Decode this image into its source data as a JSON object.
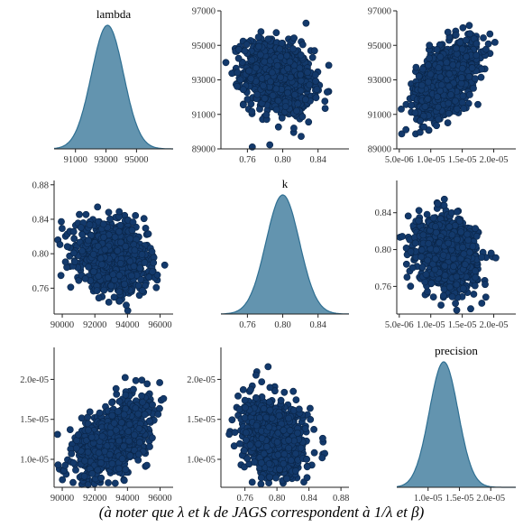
{
  "caption": "(à noter que λ et k de JAGS correspondent à 1/λ et β)",
  "colors": {
    "points_fill": "#13396b",
    "points_stroke": "#0a2547",
    "density_fill": "#5b8eab",
    "density_line": "#2f6f92",
    "axis": "#222222",
    "tick_text": "#333333"
  },
  "chart_data": [
    {
      "type": "area",
      "panel": "1,1",
      "title": "lambda",
      "variable": "lambda",
      "distribution": {
        "shape": "normal",
        "mean": 93100,
        "sd": 1050
      },
      "xlim": [
        89600,
        97400
      ],
      "xticks": [
        91000,
        93000,
        95000
      ],
      "xtick_labels": [
        "91000",
        "93000",
        "95000"
      ],
      "yticks": [],
      "grid": false
    },
    {
      "type": "scatter",
      "panel": "1,2",
      "title": "",
      "x_variable": "k",
      "y_variable": "lambda",
      "cloud": {
        "x_center": 0.795,
        "y_center": 93100,
        "x_spread": 0.019,
        "y_spread": 1050,
        "correlation": -0.2
      },
      "xlim": [
        0.73,
        0.875
      ],
      "ylim": [
        89000,
        97000
      ],
      "xticks": [
        0.76,
        0.8,
        0.84
      ],
      "xtick_labels": [
        "0.76",
        "0.80",
        "0.84"
      ],
      "yticks": [
        89000,
        91000,
        93000,
        95000,
        97000
      ],
      "ytick_labels": [
        "89000",
        "91000",
        "93000",
        "95000",
        "97000"
      ],
      "grid": false
    },
    {
      "type": "scatter",
      "panel": "1,3",
      "title": "",
      "x_variable": "precision",
      "y_variable": "lambda",
      "cloud": {
        "x_center": 1.25e-05,
        "y_center": 93100,
        "x_spread": 2.4e-06,
        "y_spread": 1050,
        "correlation": 0.5
      },
      "xlim": [
        4.6e-06,
        2.35e-05
      ],
      "ylim": [
        89000,
        97000
      ],
      "xticks": [
        5e-06,
        1e-05,
        1.5e-05,
        2e-05
      ],
      "xtick_labels": [
        "5.0e-06",
        "1.0e-05",
        "1.5e-05",
        "2.0e-05"
      ],
      "yticks": [
        89000,
        91000,
        93000,
        95000,
        97000
      ],
      "ytick_labels": [
        "89000",
        "91000",
        "93000",
        "95000",
        "97000"
      ],
      "grid": false
    },
    {
      "type": "scatter",
      "panel": "2,1",
      "title": "",
      "x_variable": "lambda",
      "y_variable": "k",
      "cloud": {
        "x_center": 93100,
        "y_center": 0.795,
        "x_spread": 1050,
        "y_spread": 0.019,
        "correlation": -0.2
      },
      "xlim": [
        89500,
        96800
      ],
      "ylim": [
        0.73,
        0.885
      ],
      "xticks": [
        90000,
        92000,
        94000,
        96000
      ],
      "xtick_labels": [
        "90000",
        "92000",
        "94000",
        "96000"
      ],
      "yticks": [
        0.76,
        0.8,
        0.84,
        0.88
      ],
      "ytick_labels": [
        "0.76",
        "0.80",
        "0.84",
        "0.88"
      ],
      "grid": false
    },
    {
      "type": "area",
      "panel": "2,2",
      "title": "k",
      "variable": "k",
      "distribution": {
        "shape": "normal",
        "mean": 0.8,
        "sd": 0.019
      },
      "xlim": [
        0.73,
        0.875
      ],
      "xticks": [
        0.76,
        0.8,
        0.84
      ],
      "xtick_labels": [
        "0.76",
        "0.80",
        "0.84"
      ],
      "yticks": [],
      "grid": false
    },
    {
      "type": "scatter",
      "panel": "2,3",
      "title": "",
      "x_variable": "precision",
      "y_variable": "k",
      "cloud": {
        "x_center": 1.25e-05,
        "y_center": 0.797,
        "x_spread": 2.4e-06,
        "y_spread": 0.019,
        "correlation": -0.2
      },
      "xlim": [
        4.6e-06,
        2.35e-05
      ],
      "ylim": [
        0.73,
        0.875
      ],
      "xticks": [
        5e-06,
        1e-05,
        1.5e-05,
        2e-05
      ],
      "xtick_labels": [
        "5.0e-06",
        "1.0e-05",
        "1.5e-05",
        "2.0e-05"
      ],
      "yticks": [
        0.76,
        0.8,
        0.84
      ],
      "ytick_labels": [
        "0.76",
        "0.80",
        "0.84"
      ],
      "grid": false
    },
    {
      "type": "scatter",
      "panel": "3,1",
      "title": "",
      "x_variable": "lambda",
      "y_variable": "precision",
      "cloud": {
        "x_center": 93100,
        "y_center": 1.25e-05,
        "x_spread": 1050,
        "y_spread": 2.4e-06,
        "correlation": 0.5
      },
      "xlim": [
        89500,
        96800
      ],
      "ylim": [
        6.5e-06,
        2.4e-05
      ],
      "xticks": [
        90000,
        92000,
        94000,
        96000
      ],
      "xtick_labels": [
        "90000",
        "92000",
        "94000",
        "96000"
      ],
      "yticks": [
        1e-05,
        1.5e-05,
        2e-05
      ],
      "ytick_labels": [
        "1.0e-05",
        "1.5e-05",
        "2.0e-05"
      ],
      "grid": false
    },
    {
      "type": "scatter",
      "panel": "3,2",
      "title": "",
      "x_variable": "k",
      "y_variable": "precision",
      "cloud": {
        "x_center": 0.797,
        "y_center": 1.25e-05,
        "x_spread": 0.019,
        "y_spread": 2.4e-06,
        "correlation": -0.2
      },
      "xlim": [
        0.73,
        0.89
      ],
      "ylim": [
        6.5e-06,
        2.4e-05
      ],
      "xticks": [
        0.76,
        0.8,
        0.84,
        0.88
      ],
      "xtick_labels": [
        "0.76",
        "0.80",
        "0.84",
        "0.88"
      ],
      "yticks": [
        1e-05,
        1.5e-05,
        2e-05
      ],
      "ytick_labels": [
        "1.0e-05",
        "1.5e-05",
        "2.0e-05"
      ],
      "grid": false
    },
    {
      "type": "area",
      "panel": "3,3",
      "title": "precision",
      "variable": "precision",
      "distribution": {
        "shape": "normal",
        "mean": 1.25e-05,
        "sd": 2.3e-06
      },
      "xlim": [
        5e-06,
        2.4e-05
      ],
      "xticks": [
        1e-05,
        1.5e-05,
        2e-05
      ],
      "xtick_labels": [
        "1.0e-05",
        "1.5e-05",
        "2.0e-05"
      ],
      "yticks": [],
      "grid": false
    }
  ]
}
